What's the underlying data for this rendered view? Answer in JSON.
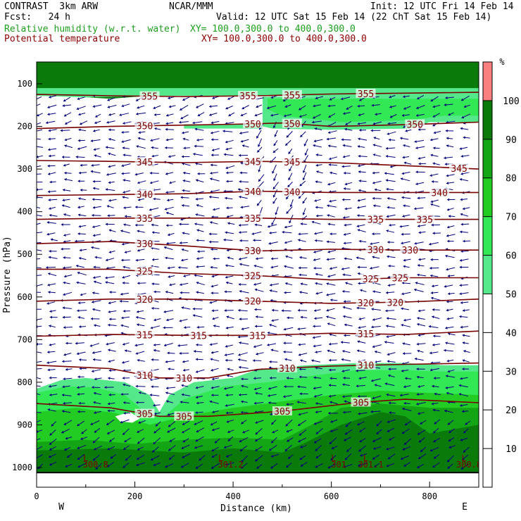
{
  "header": {
    "left1": "CONTRAST  3km ARW",
    "center1": "NCAR/MMM",
    "right1": "Init: 12 UTC Fri 14 Feb 14",
    "left2": "Fcst:   24 h",
    "right2": "Valid: 12 UTC Sat 15 Feb 14 (22 ChT Sat 15 Feb 14)",
    "rh_label": "Relative humidity (w.r.t. water)",
    "rh_xy": "XY= 100.0,300.0 to 400.0,300.0",
    "theta_label": "Potential temperature",
    "theta_xy": "XY= 100.0,300.0 to 400.0,300.0"
  },
  "axes": {
    "xlabel": "Distance (km)",
    "ylabel": "Pressure (hPa)",
    "left_end": "W",
    "right_end": "E",
    "colorbar_unit": "%"
  },
  "colors": {
    "rh_50_60": "#55e88a",
    "rh_60_70": "#33e855",
    "rh_70_80": "#22cc22",
    "rh_80_90": "#14a514",
    "rh_90_100": "#0a7a0a",
    "rh_100": "#fa8080",
    "theta": "#7a0000",
    "barb": "#00007a"
  },
  "chart_data": {
    "type": "cross-section",
    "x_range": [
      0,
      900
    ],
    "y_range_hPa": [
      1000,
      50
    ],
    "y_scale": "log-pressure",
    "x_ticks": [
      "0",
      "200",
      "400",
      "600",
      "800"
    ],
    "y_ticks": [
      "100",
      "200",
      "300",
      "400",
      "500",
      "600",
      "700",
      "800",
      "900",
      "1000"
    ],
    "colorbar_ticks": [
      "10",
      "20",
      "30",
      "40",
      "50",
      "60",
      "70",
      "80",
      "90",
      "100"
    ],
    "colorbar_levels": [
      50,
      60,
      70,
      80,
      90,
      100
    ],
    "theta_contours": [
      {
        "value": 355,
        "labels": [
          {
            "text": "355",
            "x": 230
          },
          {
            "text": "355",
            "x": 430
          },
          {
            "text": "355",
            "x": 520
          },
          {
            "text": "355",
            "x": 670
          }
        ],
        "points": [
          [
            0,
            125
          ],
          [
            150,
            128
          ],
          [
            300,
            130
          ],
          [
            450,
            128
          ],
          [
            600,
            124
          ],
          [
            750,
            122
          ],
          [
            900,
            120
          ]
        ]
      },
      {
        "value": 350,
        "labels": [
          {
            "text": "350",
            "x": 220
          },
          {
            "text": "350",
            "x": 440
          },
          {
            "text": "350",
            "x": 520
          },
          {
            "text": "350",
            "x": 770
          }
        ],
        "points": [
          [
            0,
            205
          ],
          [
            150,
            200
          ],
          [
            250,
            198
          ],
          [
            400,
            195
          ],
          [
            500,
            192
          ],
          [
            600,
            200
          ],
          [
            750,
            196
          ],
          [
            900,
            190
          ]
        ]
      },
      {
        "value": 345,
        "labels": [
          {
            "text": "345",
            "x": 220
          },
          {
            "text": "345",
            "x": 440
          },
          {
            "text": "345",
            "x": 520
          },
          {
            "text": "345",
            "x": 860
          }
        ],
        "points": [
          [
            0,
            280
          ],
          [
            150,
            282
          ],
          [
            300,
            285
          ],
          [
            450,
            282
          ],
          [
            600,
            285
          ],
          [
            750,
            292
          ],
          [
            900,
            300
          ]
        ]
      },
      {
        "value": 340,
        "labels": [
          {
            "text": "340",
            "x": 220
          },
          {
            "text": "340",
            "x": 440
          },
          {
            "text": "340",
            "x": 520
          },
          {
            "text": "340",
            "x": 820
          }
        ],
        "points": [
          [
            0,
            362
          ],
          [
            150,
            360
          ],
          [
            300,
            358
          ],
          [
            450,
            352
          ],
          [
            600,
            355
          ],
          [
            750,
            355
          ],
          [
            900,
            355
          ]
        ]
      },
      {
        "value": 335,
        "labels": [
          {
            "text": "335",
            "x": 220
          },
          {
            "text": "335",
            "x": 440
          },
          {
            "text": "335",
            "x": 690
          },
          {
            "text": "335",
            "x": 790
          }
        ],
        "points": [
          [
            0,
            418
          ],
          [
            150,
            415
          ],
          [
            300,
            415
          ],
          [
            450,
            415
          ],
          [
            600,
            418
          ],
          [
            750,
            418
          ],
          [
            900,
            418
          ]
        ]
      },
      {
        "value": 330,
        "labels": [
          {
            "text": "330",
            "x": 220
          },
          {
            "text": "330",
            "x": 440
          },
          {
            "text": "330",
            "x": 690
          },
          {
            "text": "330",
            "x": 760
          }
        ],
        "points": [
          [
            0,
            475
          ],
          [
            150,
            470
          ],
          [
            300,
            480
          ],
          [
            450,
            492
          ],
          [
            600,
            488
          ],
          [
            750,
            490
          ],
          [
            900,
            490
          ]
        ]
      },
      {
        "value": 325,
        "labels": [
          {
            "text": "325",
            "x": 220
          },
          {
            "text": "325",
            "x": 440
          },
          {
            "text": "325",
            "x": 680
          },
          {
            "text": "325",
            "x": 740
          }
        ],
        "points": [
          [
            0,
            535
          ],
          [
            150,
            535
          ],
          [
            300,
            545
          ],
          [
            450,
            550
          ],
          [
            600,
            560
          ],
          [
            750,
            555
          ],
          [
            900,
            555
          ]
        ]
      },
      {
        "value": 320,
        "labels": [
          {
            "text": "320",
            "x": 220
          },
          {
            "text": "320",
            "x": 440
          },
          {
            "text": "320",
            "x": 670
          },
          {
            "text": "320",
            "x": 730
          }
        ],
        "points": [
          [
            0,
            610
          ],
          [
            150,
            605
          ],
          [
            300,
            605
          ],
          [
            450,
            610
          ],
          [
            600,
            615
          ],
          [
            750,
            612
          ],
          [
            900,
            605
          ]
        ]
      },
      {
        "value": 315,
        "labels": [
          {
            "text": "315",
            "x": 220
          },
          {
            "text": "315",
            "x": 330
          },
          {
            "text": "315",
            "x": 450
          },
          {
            "text": "315",
            "x": 670
          }
        ],
        "points": [
          [
            0,
            692
          ],
          [
            150,
            688
          ],
          [
            300,
            690
          ],
          [
            450,
            690
          ],
          [
            600,
            685
          ],
          [
            750,
            688
          ],
          [
            900,
            680
          ]
        ]
      },
      {
        "value": 310,
        "labels": [
          {
            "text": "310",
            "x": 220
          },
          {
            "text": "310",
            "x": 300
          },
          {
            "text": "310",
            "x": 510
          },
          {
            "text": "310",
            "x": 670
          }
        ],
        "points": [
          [
            0,
            760
          ],
          [
            150,
            768
          ],
          [
            250,
            790
          ],
          [
            350,
            790
          ],
          [
            450,
            770
          ],
          [
            600,
            762
          ],
          [
            750,
            758
          ],
          [
            900,
            755
          ]
        ]
      },
      {
        "value": 305,
        "labels": [
          {
            "text": "305",
            "x": 220
          },
          {
            "text": "305",
            "x": 300
          },
          {
            "text": "305",
            "x": 500
          },
          {
            "text": "305",
            "x": 660
          }
        ],
        "points": [
          [
            0,
            850
          ],
          [
            150,
            860
          ],
          [
            250,
            880
          ],
          [
            350,
            880
          ],
          [
            500,
            868
          ],
          [
            650,
            848
          ],
          [
            750,
            840
          ],
          [
            900,
            848
          ]
        ]
      }
    ],
    "surface_labels": [
      {
        "text": "300.8",
        "x": 120
      },
      {
        "text": "301.2",
        "x": 395
      },
      {
        "text": "301",
        "x": 615
      },
      {
        "text": "301.1",
        "x": 680
      },
      {
        "text": "300.8",
        "x": 880
      }
    ],
    "low_markers": [
      {
        "text": "L",
        "x": 100
      },
      {
        "text": "L",
        "x": 375
      },
      {
        "text": "L",
        "x": 605
      },
      {
        "text": "L",
        "x": 670
      },
      {
        "text": "L",
        "x": 870
      }
    ]
  }
}
